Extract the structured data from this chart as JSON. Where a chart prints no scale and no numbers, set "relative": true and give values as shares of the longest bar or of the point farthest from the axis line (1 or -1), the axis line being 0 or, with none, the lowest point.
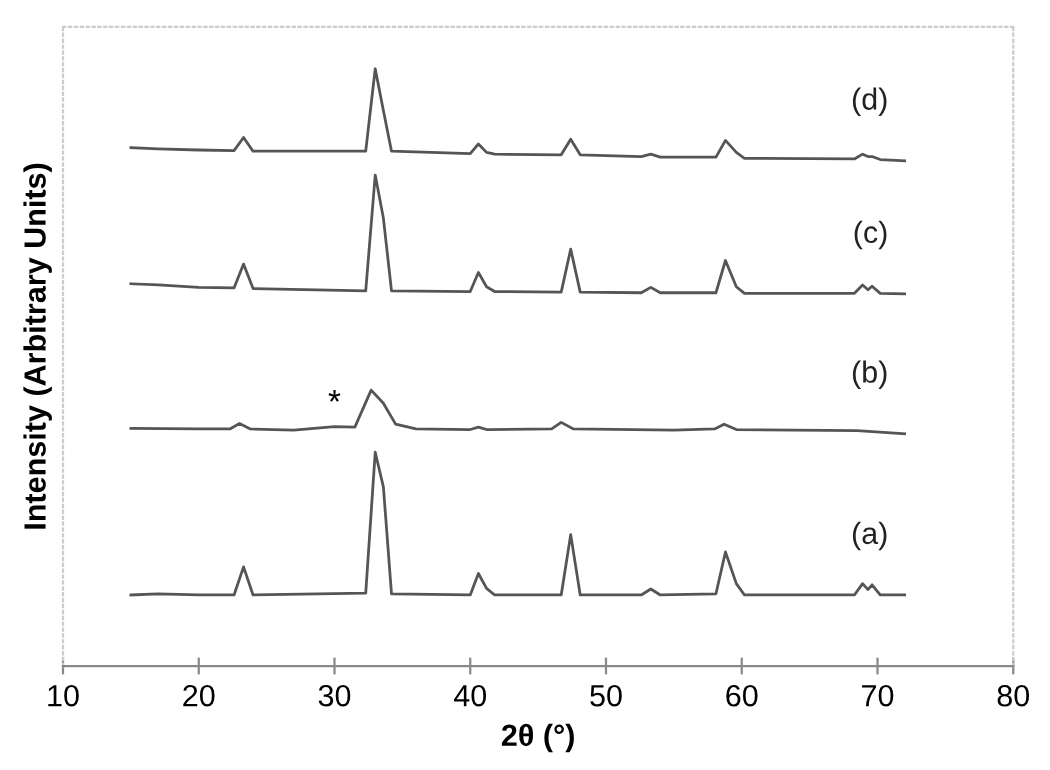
{
  "chart_data": {
    "type": "line",
    "relative": true,
    "xlabel": "2θ (°)",
    "ylabel": "Intensity (Arbitrary Units)",
    "xlim": [
      10,
      80
    ],
    "xticks": [
      10,
      20,
      30,
      40,
      50,
      60,
      70,
      80
    ],
    "grid": false,
    "legend": false,
    "marker": "none",
    "line_style": "solid",
    "x": [
      15,
      17,
      20,
      22.6,
      23.3,
      24,
      32.3,
      33.0,
      33.6,
      34.2,
      40.0,
      40.6,
      41.2,
      41.8,
      46.7,
      47.4,
      48.1,
      52.6,
      53.3,
      54.0,
      58.1,
      58.8,
      59.6,
      60.2,
      68.3,
      68.9,
      69.3,
      69.6,
      70.2,
      72
    ],
    "series": [
      {
        "name": "(a)",
        "color": "#555555",
        "values": [
          0.119,
          0.121,
          0.119,
          0.119,
          0.166,
          0.119,
          0.122,
          0.358,
          0.3,
          0.121,
          0.119,
          0.155,
          0.13,
          0.119,
          0.119,
          0.22,
          0.119,
          0.119,
          0.129,
          0.119,
          0.121,
          0.191,
          0.138,
          0.119,
          0.119,
          0.138,
          0.128,
          0.136,
          0.119,
          0.119
        ]
      },
      {
        "name": "(b)",
        "color": "#555555",
        "x": [
          15,
          20,
          22.3,
          23,
          23.8,
          27,
          30,
          31.5,
          32.7,
          33.6,
          34.5,
          36,
          40,
          40.6,
          41.2,
          46,
          46.7,
          47.6,
          55,
          58,
          58.7,
          59.6,
          68.5,
          72
        ],
        "values": [
          0.398,
          0.397,
          0.397,
          0.406,
          0.397,
          0.395,
          0.401,
          0.4,
          0.462,
          0.44,
          0.405,
          0.397,
          0.396,
          0.4,
          0.396,
          0.397,
          0.408,
          0.397,
          0.395,
          0.397,
          0.405,
          0.396,
          0.394,
          0.389
        ]
      },
      {
        "name": "(c)",
        "color": "#555555",
        "values": [
          0.64,
          0.638,
          0.634,
          0.633,
          0.673,
          0.632,
          0.628,
          0.822,
          0.75,
          0.628,
          0.627,
          0.659,
          0.635,
          0.627,
          0.626,
          0.698,
          0.626,
          0.625,
          0.634,
          0.625,
          0.625,
          0.679,
          0.635,
          0.624,
          0.624,
          0.638,
          0.63,
          0.636,
          0.624,
          0.623
        ]
      },
      {
        "name": "(d)",
        "color": "#555555",
        "values": [
          0.868,
          0.866,
          0.864,
          0.863,
          0.885,
          0.862,
          0.862,
          1.0,
          0.93,
          0.862,
          0.858,
          0.874,
          0.86,
          0.857,
          0.856,
          0.882,
          0.856,
          0.853,
          0.857,
          0.852,
          0.852,
          0.88,
          0.86,
          0.85,
          0.849,
          0.857,
          0.853,
          0.853,
          0.848,
          0.846
        ]
      }
    ],
    "annotations": [
      {
        "text": "*",
        "x": 30,
        "y": 0.401
      }
    ]
  }
}
